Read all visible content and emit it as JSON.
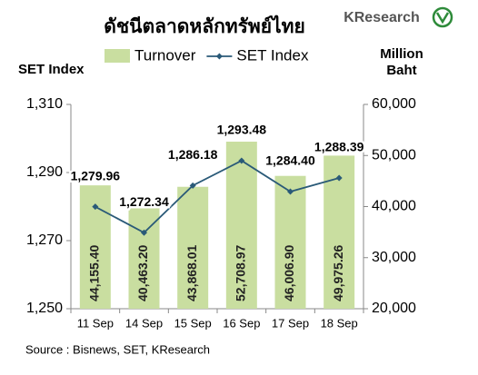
{
  "chart_data": {
    "type": "bar",
    "title": "ดัชนีตลาดหลักทรัพย์ไทย",
    "logo": "KResearch",
    "ylabel": "SET Index",
    "y2label": [
      "Million",
      "Baht"
    ],
    "source": "Source : Bisnews, SET, KResearch",
    "categories": [
      "11 Sep",
      "14 Sep",
      "15 Sep",
      "16 Sep",
      "17 Sep",
      "18 Sep"
    ],
    "series": [
      {
        "name": "Turnover",
        "type": "bar",
        "axis": "y2",
        "color": "#c9dea0",
        "values": [
          44155.4,
          40463.2,
          43868.01,
          52708.97,
          46006.9,
          49975.26
        ],
        "value_labels": [
          "44,155.40",
          "40,463.20",
          "43,868.01",
          "52,708.97",
          "46,006.90",
          "49,975.26"
        ]
      },
      {
        "name": "SET Index",
        "type": "line",
        "color": "#2a5a78",
        "values": [
          1279.96,
          1272.34,
          1286.18,
          1293.48,
          1284.4,
          1288.39
        ],
        "value_labels": [
          "1,279.96",
          "1,272.34",
          "1,286.18",
          "1,293.48",
          "1,284.40",
          "1,288.39"
        ]
      }
    ],
    "ylim": [
      1250,
      1310
    ],
    "yticks": [
      {
        "value": 1250,
        "label": "1,250"
      },
      {
        "value": 1270,
        "label": "1,270"
      },
      {
        "value": 1290,
        "label": "1,290"
      },
      {
        "value": 1310,
        "label": "1,310"
      }
    ],
    "y2lim": [
      20000,
      60000
    ],
    "y2ticks": [
      {
        "value": 20000,
        "label": "20,000"
      },
      {
        "value": 30000,
        "label": "30,000"
      },
      {
        "value": 40000,
        "label": "40,000"
      },
      {
        "value": 50000,
        "label": "50,000"
      },
      {
        "value": 60000,
        "label": "60,000"
      }
    ],
    "grid": false
  }
}
